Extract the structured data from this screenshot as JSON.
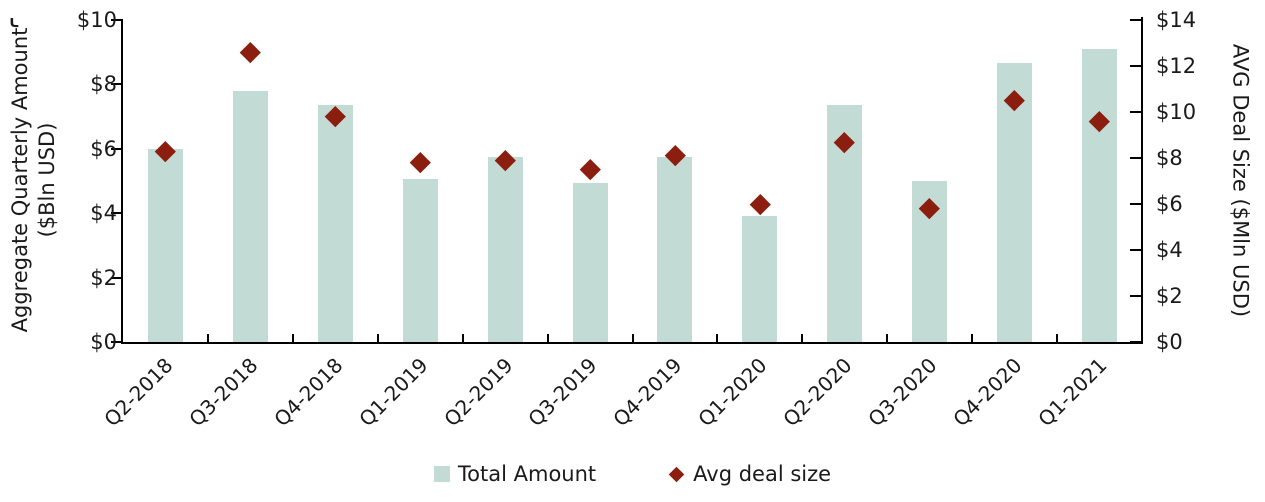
{
  "page": {
    "background": "#ffffff",
    "corner_artifact_glyph": "t"
  },
  "chart_data": {
    "type": "bar",
    "subtype": "combo-bar-with-diamond-scatter",
    "categories": [
      "Q2-2018",
      "Q3-2018",
      "Q4-2018",
      "Q1-2019",
      "Q2-2019",
      "Q3-2019",
      "Q4-2019",
      "Q1-2020",
      "Q2-2020",
      "Q3-2020",
      "Q4-2020",
      "Q1-2021"
    ],
    "series": [
      {
        "name": "Total Amount",
        "type": "bar",
        "axis": "left",
        "color": "#c2dbd4",
        "values": [
          6.0,
          7.8,
          7.35,
          5.05,
          5.75,
          4.95,
          5.75,
          3.9,
          7.35,
          5.0,
          8.65,
          9.1
        ]
      },
      {
        "name": "Avg deal size",
        "type": "scatter",
        "marker": "diamond",
        "axis": "right",
        "color": "#8c1e10",
        "values": [
          8.3,
          12.6,
          9.8,
          7.8,
          7.9,
          7.5,
          8.1,
          6.0,
          8.7,
          5.8,
          10.5,
          9.6
        ]
      }
    ],
    "left_axis": {
      "label": "Aggregate Quarterly Amount ($Bln USD)",
      "label_line1": "Aggregate Quarterly Amount",
      "label_line2": "($Bln USD)",
      "min": 0,
      "max": 10,
      "step": 2,
      "ticks": [
        0,
        2,
        4,
        6,
        8,
        10
      ],
      "tick_labels": [
        "$0",
        "$2",
        "$4",
        "$6",
        "$8",
        "$10"
      ]
    },
    "right_axis": {
      "label": "AVG Deal Size ($Mln USD)",
      "min": 0,
      "max": 14,
      "step": 2,
      "ticks": [
        0,
        2,
        4,
        6,
        8,
        10,
        12,
        14
      ],
      "tick_labels": [
        "$0",
        "$2",
        "$4",
        "$6",
        "$8",
        "$10",
        "$12",
        "$14"
      ]
    },
    "grid": false,
    "legend_position": "bottom-center",
    "legend": [
      {
        "label": "Total Amount",
        "marker": "square",
        "color": "#c2dbd4"
      },
      {
        "label": "Avg deal size",
        "marker": "diamond",
        "color": "#8c1e10"
      }
    ]
  }
}
